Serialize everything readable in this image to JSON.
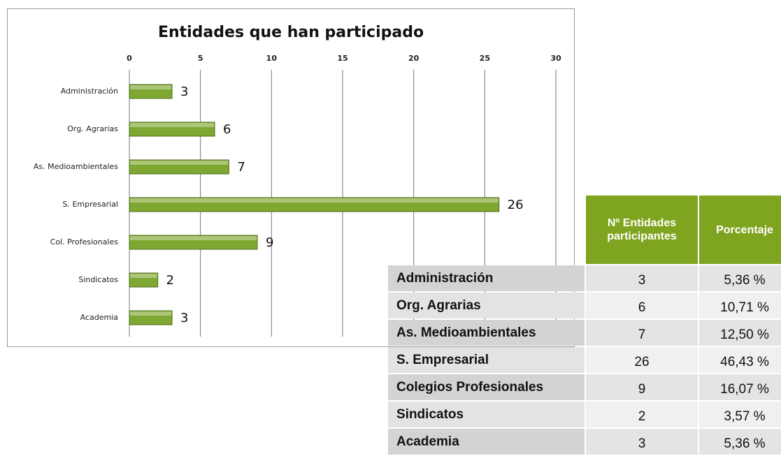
{
  "chart_data": {
    "type": "bar",
    "orientation": "horizontal",
    "title": "Entidades que han participado",
    "categories": [
      "Administración",
      "Org. Agrarias",
      "As. Medioambientales",
      "S. Empresarial",
      "Col. Profesionales",
      "Sindicatos",
      "Academia"
    ],
    "values": [
      3,
      6,
      7,
      26,
      9,
      2,
      3
    ],
    "color": "#7fa832",
    "xlim": [
      0,
      30
    ],
    "xticks": [
      0,
      5,
      10,
      15,
      20,
      25,
      30
    ],
    "grid": true
  },
  "table": {
    "header": [
      "Nº Entidades participantes",
      "Porcentaje"
    ],
    "rows": [
      [
        "Administración",
        3,
        "5,36 %"
      ],
      [
        "Org. Agrarias",
        6,
        "10,71 %"
      ],
      [
        "As. Medioambientales",
        7,
        "12,50 %"
      ],
      [
        "S. Empresarial",
        26,
        "46,43 %"
      ],
      [
        "Colegios Profesionales",
        9,
        "16,07 %"
      ],
      [
        "Sindicatos",
        2,
        "3,57 %"
      ],
      [
        "Academia",
        3,
        "5,36 %"
      ]
    ]
  }
}
